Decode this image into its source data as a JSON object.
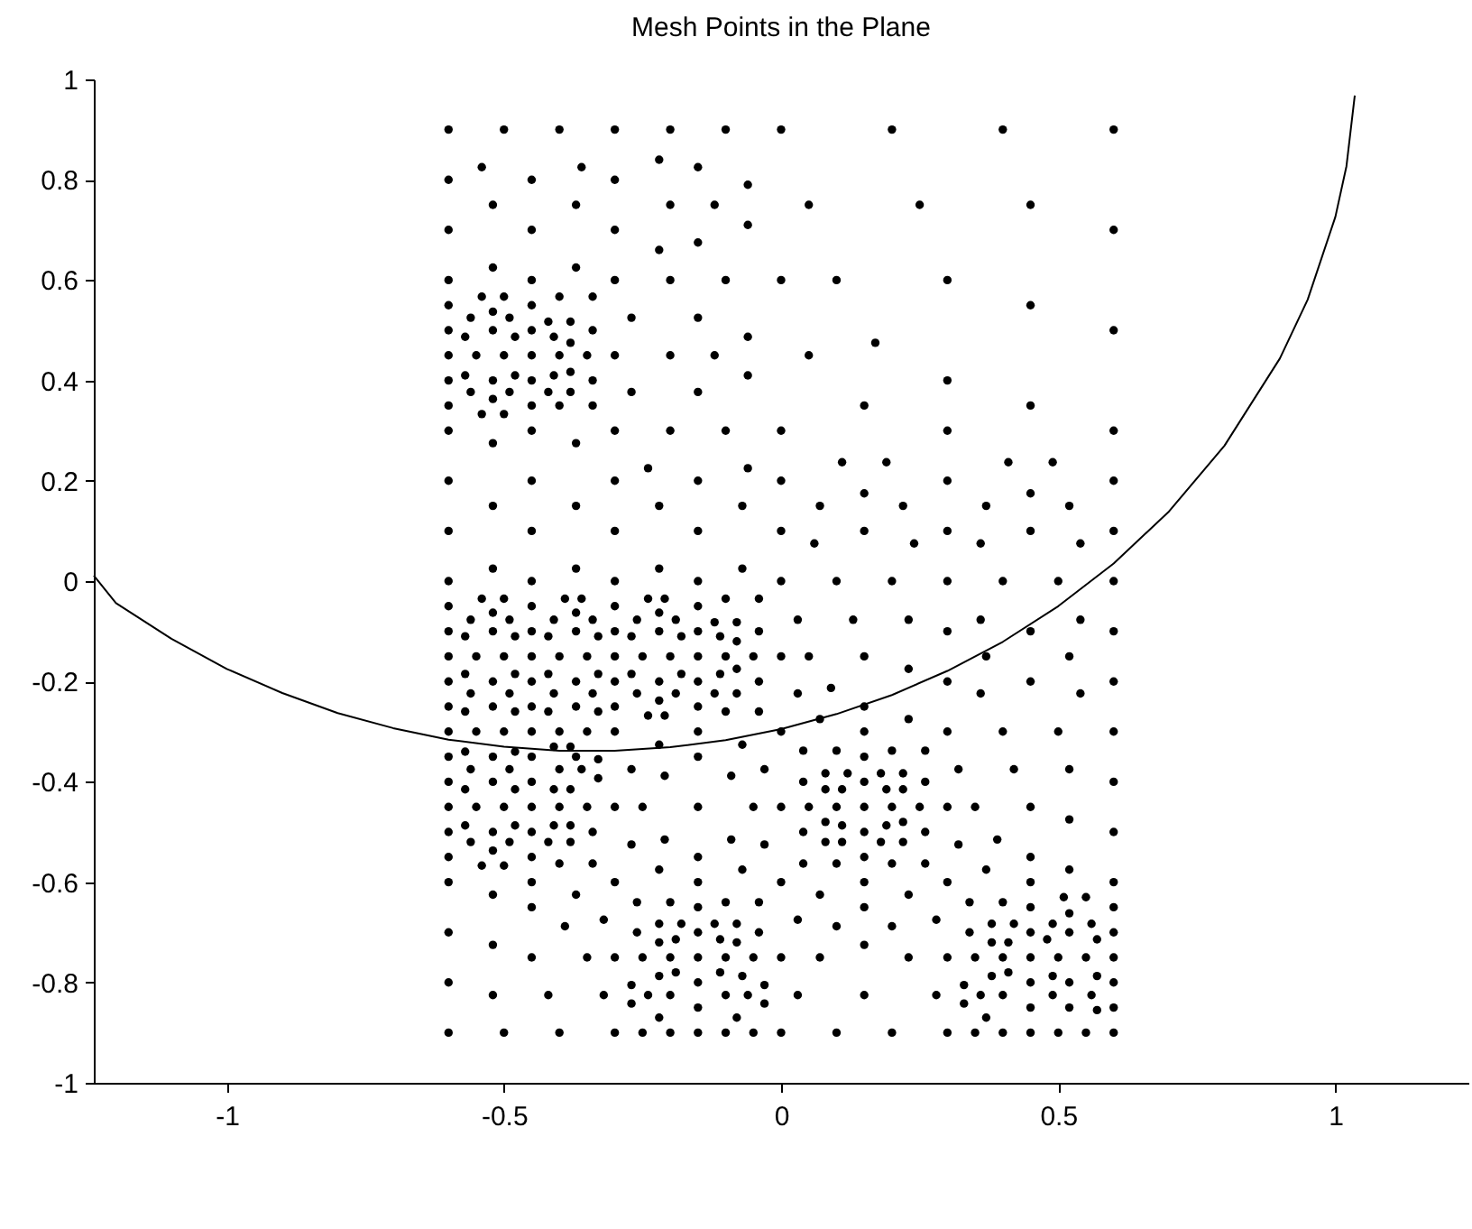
{
  "chart_data": {
    "type": "scatter",
    "title": "Mesh Points in the Plane",
    "xlim": [
      -1.24,
      1.24
    ],
    "ylim": [
      -1,
      1
    ],
    "xticks": [
      -1,
      -0.5,
      0,
      0.5,
      1
    ],
    "yticks": [
      -1,
      -0.8,
      -0.6,
      -0.4,
      -0.2,
      0,
      0.2,
      0.4,
      0.6,
      0.8,
      1
    ],
    "series": [
      {
        "color": "#000000",
        "marker": "circle",
        "x": [
          -0.6,
          -0.5,
          -0.4,
          -0.3,
          -0.2,
          -0.1,
          0,
          0.2,
          0.4,
          0.6,
          -0.22,
          -0.54,
          -0.36,
          -0.15,
          -0.6,
          -0.45,
          -0.3,
          -0.06,
          -0.52,
          -0.37,
          -0.2,
          -0.12,
          0.05,
          0.25,
          0.45,
          -0.06,
          -0.6,
          -0.45,
          -0.3,
          0.6,
          -0.15,
          -0.22,
          -0.52,
          -0.37,
          -0.6,
          -0.45,
          -0.3,
          -0.2,
          -0.1,
          0,
          0.1,
          0.3,
          -0.54,
          -0.5,
          -0.4,
          -0.34,
          -0.6,
          -0.45,
          0.45,
          -0.52,
          -0.56,
          -0.49,
          -0.27,
          -0.15,
          -0.42,
          -0.38,
          -0.6,
          -0.52,
          -0.45,
          -0.34,
          0.6,
          -0.57,
          -0.48,
          -0.41,
          -0.06,
          -0.38,
          0.17,
          -0.6,
          -0.55,
          -0.5,
          -0.45,
          -0.4,
          -0.35,
          -0.3,
          -0.2,
          -0.12,
          0.05,
          -0.38,
          -0.57,
          -0.48,
          -0.41,
          -0.06,
          -0.6,
          -0.52,
          -0.45,
          -0.34,
          0.3,
          -0.56,
          -0.49,
          -0.42,
          -0.38,
          -0.27,
          -0.15,
          -0.52,
          -0.6,
          -0.45,
          -0.4,
          -0.34,
          0.15,
          0.45,
          -0.54,
          -0.5,
          -0.6,
          -0.45,
          -0.3,
          -0.2,
          -0.1,
          0,
          0.3,
          0.6,
          -0.52,
          -0.37,
          0.11,
          0.19,
          0.41,
          0.49,
          -0.24,
          -0.06,
          -0.6,
          -0.45,
          -0.3,
          -0.15,
          0,
          0.3,
          0.6,
          0.15,
          0.45,
          -0.52,
          -0.37,
          -0.22,
          -0.07,
          0.07,
          0.22,
          0.37,
          0.52,
          -0.6,
          -0.45,
          -0.3,
          -0.15,
          0,
          0.15,
          0.3,
          0.45,
          0.6,
          0.06,
          0.24,
          0.36,
          0.54,
          -0.52,
          -0.37,
          -0.22,
          -0.07,
          -0.6,
          -0.45,
          -0.3,
          -0.15,
          0,
          0.1,
          0.2,
          0.3,
          0.4,
          0.5,
          0.6,
          -0.54,
          -0.5,
          -0.39,
          -0.36,
          -0.24,
          -0.21,
          -0.1,
          -0.04,
          -0.6,
          -0.45,
          -0.3,
          -0.15,
          -0.52,
          -0.37,
          -0.22,
          -0.56,
          -0.49,
          -0.41,
          -0.34,
          -0.26,
          -0.19,
          0.03,
          0.13,
          0.23,
          0.36,
          0.54,
          -0.12,
          -0.08,
          -0.6,
          -0.52,
          -0.45,
          -0.37,
          -0.3,
          -0.22,
          -0.15,
          -0.04,
          0.3,
          0.45,
          0.6,
          -0.57,
          -0.48,
          -0.42,
          -0.33,
          -0.27,
          -0.18,
          -0.11,
          -0.08,
          -0.6,
          -0.55,
          -0.5,
          -0.45,
          -0.4,
          -0.35,
          -0.3,
          -0.25,
          -0.2,
          -0.15,
          -0.1,
          -0.05,
          0,
          0.05,
          0.15,
          0.37,
          0.52,
          0.23,
          -0.08,
          -0.57,
          -0.48,
          -0.42,
          -0.33,
          -0.27,
          -0.18,
          -0.11,
          -0.6,
          -0.52,
          -0.45,
          -0.37,
          -0.3,
          -0.22,
          -0.15,
          -0.04,
          0.3,
          0.45,
          0.6,
          0.09,
          -0.56,
          -0.49,
          -0.41,
          -0.34,
          -0.26,
          -0.19,
          -0.12,
          -0.08,
          0.03,
          0.36,
          0.54,
          -0.22,
          -0.6,
          -0.52,
          -0.45,
          -0.37,
          -0.3,
          -0.15,
          0.15,
          -0.57,
          -0.48,
          -0.42,
          -0.33,
          -0.1,
          -0.04,
          -0.24,
          -0.21,
          0.07,
          0.23,
          -0.6,
          -0.55,
          -0.5,
          -0.45,
          -0.4,
          -0.35,
          -0.3,
          -0.15,
          0,
          0.15,
          0.3,
          0.4,
          0.5,
          0.6,
          -0.22,
          -0.07,
          -0.41,
          -0.38,
          0.04,
          0.1,
          0.2,
          0.26,
          -0.57,
          -0.48,
          -0.6,
          -0.52,
          -0.45,
          -0.37,
          -0.15,
          0.15,
          -0.33,
          -0.56,
          -0.49,
          -0.4,
          -0.36,
          -0.27,
          -0.03,
          0.32,
          0.42,
          0.52,
          0.08,
          0.12,
          0.18,
          0.22,
          -0.21,
          -0.09,
          -0.33,
          -0.6,
          -0.52,
          -0.45,
          0.04,
          0.15,
          0.26,
          0.6,
          -0.57,
          -0.48,
          -0.41,
          -0.38,
          0.08,
          0.11,
          0.19,
          0.22,
          -0.6,
          -0.55,
          -0.5,
          -0.45,
          -0.4,
          -0.35,
          -0.3,
          -0.25,
          -0.15,
          -0.05,
          0,
          0.05,
          0.1,
          0.15,
          0.2,
          0.25,
          0.3,
          0.35,
          0.45,
          0.52,
          0.08,
          0.22,
          -0.57,
          -0.48,
          -0.41,
          -0.38,
          0.11,
          0.19,
          -0.6,
          -0.52,
          -0.45,
          -0.34,
          0.04,
          0.15,
          0.26,
          0.6,
          -0.21,
          -0.09,
          0.39,
          -0.56,
          -0.49,
          -0.42,
          -0.38,
          0.08,
          0.11,
          0.18,
          0.22,
          -0.27,
          -0.03,
          0.32,
          -0.52,
          -0.6,
          -0.45,
          -0.15,
          0.15,
          0.45,
          -0.4,
          -0.34,
          0.04,
          0.1,
          0.2,
          0.26,
          -0.54,
          -0.5,
          -0.22,
          -0.07,
          0.37,
          0.52,
          -0.6,
          -0.45,
          -0.3,
          -0.15,
          0,
          0.15,
          0.3,
          0.45,
          0.6,
          -0.52,
          -0.37,
          0.07,
          0.23,
          0.51,
          0.55,
          -0.26,
          -0.2,
          -0.1,
          -0.04,
          0.34,
          0.4,
          -0.45,
          -0.15,
          0.15,
          0.45,
          0.6,
          0.52,
          -0.32,
          0.03,
          0.28,
          -0.22,
          -0.18,
          -0.12,
          -0.08,
          0.38,
          0.42,
          0.49,
          0.56,
          -0.39,
          0.1,
          0.2,
          -0.6,
          -0.26,
          -0.15,
          -0.04,
          0.34,
          0.45,
          0.52,
          0.6,
          -0.19,
          -0.11,
          0.48,
          0.57,
          -0.22,
          -0.08,
          0.38,
          0.41,
          -0.52,
          0.15,
          -0.45,
          -0.35,
          -0.3,
          -0.25,
          -0.2,
          -0.15,
          -0.1,
          -0.05,
          0,
          0.07,
          0.23,
          0.3,
          0.35,
          0.4,
          0.45,
          0.5,
          0.55,
          0.6,
          -0.19,
          -0.11,
          0.41,
          -0.22,
          -0.07,
          0.38,
          0.49,
          0.57,
          -0.6,
          -0.15,
          0.45,
          0.52,
          0.6,
          -0.27,
          -0.03,
          0.33,
          -0.52,
          -0.42,
          -0.32,
          -0.24,
          -0.2,
          -0.1,
          -0.06,
          0.03,
          0.15,
          0.28,
          0.36,
          0.4,
          0.49,
          0.56,
          -0.27,
          -0.03,
          0.33,
          -0.15,
          0.45,
          0.52,
          0.6,
          0.57,
          -0.22,
          -0.08,
          0.37,
          -0.6,
          -0.5,
          -0.4,
          -0.3,
          -0.25,
          -0.2,
          -0.15,
          -0.1,
          -0.05,
          0,
          0.1,
          0.2,
          0.3,
          0.35,
          0.4,
          0.45,
          0.5,
          0.55,
          0.6
        ],
        "values": [
          0.9,
          0.9,
          0.9,
          0.9,
          0.9,
          0.9,
          0.9,
          0.9,
          0.9,
          0.9,
          0.84,
          0.825,
          0.825,
          0.825,
          0.8,
          0.8,
          0.8,
          0.79,
          0.75,
          0.75,
          0.75,
          0.75,
          0.75,
          0.75,
          0.75,
          0.71,
          0.7,
          0.7,
          0.7,
          0.7,
          0.675,
          0.66,
          0.625,
          0.625,
          0.6,
          0.6,
          0.6,
          0.6,
          0.6,
          0.6,
          0.6,
          0.6,
          0.567,
          0.567,
          0.567,
          0.567,
          0.55,
          0.55,
          0.55,
          0.537,
          0.525,
          0.525,
          0.525,
          0.525,
          0.517,
          0.517,
          0.5,
          0.5,
          0.5,
          0.5,
          0.5,
          0.487,
          0.487,
          0.487,
          0.487,
          0.475,
          0.475,
          0.45,
          0.45,
          0.45,
          0.45,
          0.45,
          0.45,
          0.45,
          0.45,
          0.45,
          0.45,
          0.417,
          0.41,
          0.41,
          0.41,
          0.41,
          0.4,
          0.4,
          0.4,
          0.4,
          0.4,
          0.377,
          0.377,
          0.377,
          0.377,
          0.377,
          0.377,
          0.363,
          0.35,
          0.35,
          0.35,
          0.35,
          0.35,
          0.35,
          0.333,
          0.333,
          0.3,
          0.3,
          0.3,
          0.3,
          0.3,
          0.3,
          0.3,
          0.3,
          0.275,
          0.275,
          0.237,
          0.237,
          0.237,
          0.237,
          0.225,
          0.225,
          0.2,
          0.2,
          0.2,
          0.2,
          0.2,
          0.2,
          0.2,
          0.175,
          0.175,
          0.15,
          0.15,
          0.15,
          0.15,
          0.15,
          0.15,
          0.15,
          0.15,
          0.1,
          0.1,
          0.1,
          0.1,
          0.1,
          0.1,
          0.1,
          0.1,
          0.1,
          0.075,
          0.075,
          0.075,
          0.075,
          0.025,
          0.025,
          0.025,
          0.025,
          0,
          0,
          0,
          0,
          0,
          0,
          0,
          0,
          0,
          0,
          0,
          -0.035,
          -0.035,
          -0.035,
          -0.035,
          -0.035,
          -0.035,
          -0.035,
          -0.035,
          -0.05,
          -0.05,
          -0.05,
          -0.05,
          -0.063,
          -0.063,
          -0.063,
          -0.077,
          -0.077,
          -0.077,
          -0.077,
          -0.077,
          -0.077,
          -0.077,
          -0.077,
          -0.077,
          -0.077,
          -0.077,
          -0.082,
          -0.082,
          -0.1,
          -0.1,
          -0.1,
          -0.1,
          -0.1,
          -0.1,
          -0.1,
          -0.1,
          -0.1,
          -0.1,
          -0.1,
          -0.11,
          -0.11,
          -0.11,
          -0.11,
          -0.11,
          -0.11,
          -0.11,
          -0.12,
          -0.15,
          -0.15,
          -0.15,
          -0.15,
          -0.15,
          -0.15,
          -0.15,
          -0.15,
          -0.15,
          -0.15,
          -0.15,
          -0.15,
          -0.15,
          -0.15,
          -0.15,
          -0.15,
          -0.15,
          -0.175,
          -0.175,
          -0.185,
          -0.185,
          -0.185,
          -0.185,
          -0.185,
          -0.185,
          -0.185,
          -0.2,
          -0.2,
          -0.2,
          -0.2,
          -0.2,
          -0.2,
          -0.2,
          -0.2,
          -0.2,
          -0.2,
          -0.2,
          -0.213,
          -0.224,
          -0.224,
          -0.224,
          -0.224,
          -0.224,
          -0.224,
          -0.224,
          -0.224,
          -0.224,
          -0.224,
          -0.224,
          -0.238,
          -0.25,
          -0.25,
          -0.25,
          -0.25,
          -0.25,
          -0.25,
          -0.25,
          -0.26,
          -0.26,
          -0.26,
          -0.26,
          -0.26,
          -0.26,
          -0.268,
          -0.268,
          -0.275,
          -0.275,
          -0.3,
          -0.3,
          -0.3,
          -0.3,
          -0.3,
          -0.3,
          -0.3,
          -0.3,
          -0.3,
          -0.3,
          -0.3,
          -0.3,
          -0.3,
          -0.3,
          -0.326,
          -0.326,
          -0.33,
          -0.33,
          -0.338,
          -0.338,
          -0.338,
          -0.338,
          -0.34,
          -0.34,
          -0.35,
          -0.35,
          -0.35,
          -0.35,
          -0.35,
          -0.35,
          -0.355,
          -0.375,
          -0.375,
          -0.375,
          -0.375,
          -0.375,
          -0.375,
          -0.375,
          -0.375,
          -0.375,
          -0.383,
          -0.383,
          -0.383,
          -0.383,
          -0.388,
          -0.388,
          -0.393,
          -0.4,
          -0.4,
          -0.4,
          -0.4,
          -0.4,
          -0.4,
          -0.4,
          -0.415,
          -0.415,
          -0.415,
          -0.415,
          -0.415,
          -0.415,
          -0.415,
          -0.415,
          -0.45,
          -0.45,
          -0.45,
          -0.45,
          -0.45,
          -0.45,
          -0.45,
          -0.45,
          -0.45,
          -0.45,
          -0.45,
          -0.45,
          -0.45,
          -0.45,
          -0.45,
          -0.45,
          -0.45,
          -0.45,
          -0.45,
          -0.475,
          -0.48,
          -0.48,
          -0.487,
          -0.487,
          -0.487,
          -0.487,
          -0.487,
          -0.487,
          -0.5,
          -0.5,
          -0.5,
          -0.5,
          -0.5,
          -0.5,
          -0.5,
          -0.5,
          -0.515,
          -0.515,
          -0.515,
          -0.52,
          -0.52,
          -0.52,
          -0.52,
          -0.52,
          -0.52,
          -0.52,
          -0.52,
          -0.525,
          -0.525,
          -0.525,
          -0.537,
          -0.55,
          -0.55,
          -0.55,
          -0.55,
          -0.55,
          -0.563,
          -0.563,
          -0.563,
          -0.563,
          -0.563,
          -0.563,
          -0.567,
          -0.567,
          -0.575,
          -0.575,
          -0.575,
          -0.575,
          -0.6,
          -0.6,
          -0.6,
          -0.6,
          -0.6,
          -0.6,
          -0.6,
          -0.6,
          -0.6,
          -0.625,
          -0.625,
          -0.625,
          -0.625,
          -0.63,
          -0.63,
          -0.64,
          -0.64,
          -0.64,
          -0.64,
          -0.64,
          -0.64,
          -0.65,
          -0.65,
          -0.65,
          -0.65,
          -0.65,
          -0.662,
          -0.675,
          -0.675,
          -0.675,
          -0.683,
          -0.683,
          -0.683,
          -0.683,
          -0.683,
          -0.683,
          -0.683,
          -0.683,
          -0.688,
          -0.688,
          -0.688,
          -0.7,
          -0.7,
          -0.7,
          -0.7,
          -0.7,
          -0.7,
          -0.7,
          -0.7,
          -0.714,
          -0.714,
          -0.714,
          -0.714,
          -0.72,
          -0.72,
          -0.72,
          -0.72,
          -0.725,
          -0.725,
          -0.75,
          -0.75,
          -0.75,
          -0.75,
          -0.75,
          -0.75,
          -0.75,
          -0.75,
          -0.75,
          -0.75,
          -0.75,
          -0.75,
          -0.75,
          -0.75,
          -0.75,
          -0.75,
          -0.75,
          -0.75,
          -0.78,
          -0.78,
          -0.78,
          -0.787,
          -0.787,
          -0.787,
          -0.787,
          -0.787,
          -0.8,
          -0.8,
          -0.8,
          -0.8,
          -0.8,
          -0.805,
          -0.805,
          -0.805,
          -0.825,
          -0.825,
          -0.825,
          -0.825,
          -0.825,
          -0.825,
          -0.825,
          -0.825,
          -0.825,
          -0.825,
          -0.825,
          -0.825,
          -0.825,
          -0.825,
          -0.842,
          -0.842,
          -0.842,
          -0.85,
          -0.85,
          -0.85,
          -0.85,
          -0.855,
          -0.87,
          -0.87,
          -0.87,
          -0.9,
          -0.9,
          -0.9,
          -0.9,
          -0.9,
          -0.9,
          -0.9,
          -0.9,
          -0.9,
          -0.9,
          -0.9,
          -0.9,
          -0.9,
          -0.9,
          -0.9,
          -0.9,
          -0.9,
          -0.9,
          -0.9
        ]
      },
      {
        "type": "line",
        "color": "#000000",
        "x": [
          -1.24,
          -1.2,
          -1.1,
          -1.0,
          -0.9,
          -0.8,
          -0.7,
          -0.6,
          -0.5,
          -0.4,
          -0.3,
          -0.2,
          -0.1,
          0,
          0.1,
          0.2,
          0.3,
          0.4,
          0.5,
          0.6,
          0.7,
          0.8,
          0.9,
          0.95,
          1.0,
          1.02,
          1.035
        ],
        "values": [
          0.011,
          -0.044,
          -0.115,
          -0.175,
          -0.223,
          -0.263,
          -0.293,
          -0.316,
          -0.33,
          -0.338,
          -0.338,
          -0.331,
          -0.317,
          -0.295,
          -0.265,
          -0.227,
          -0.179,
          -0.121,
          -0.05,
          0.035,
          0.139,
          0.27,
          0.444,
          0.561,
          0.726,
          0.827,
          0.968
        ]
      }
    ]
  }
}
